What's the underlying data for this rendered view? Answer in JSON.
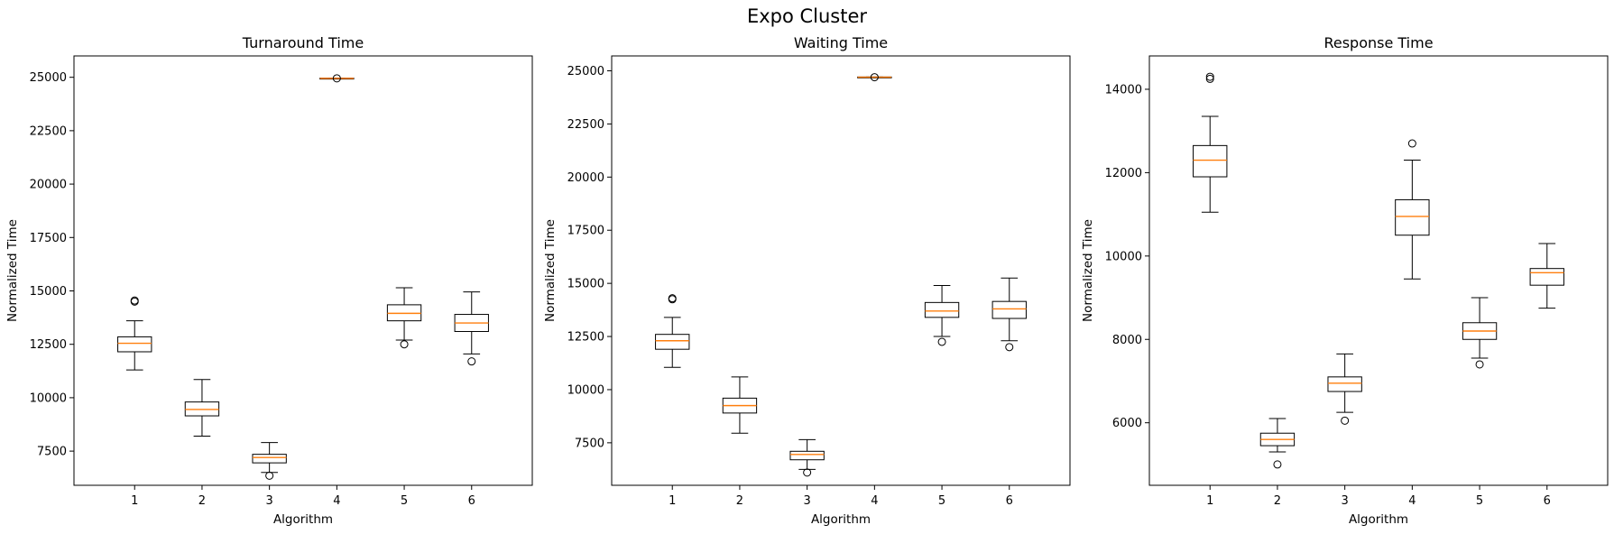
{
  "chart_data": {
    "suptitle": "Expo Cluster",
    "type": "box",
    "colors": {
      "box": "#000000",
      "median": "#ff7f0e",
      "frame": "#000000"
    },
    "grid": false,
    "panels": [
      {
        "title": "Turnaround Time",
        "xlabel": "Algorithm",
        "ylabel": "Normalized Time",
        "categories": [
          "1",
          "2",
          "3",
          "4",
          "5",
          "6"
        ],
        "ylim": [
          5900,
          26000
        ],
        "yticks": [
          7500,
          10000,
          12500,
          15000,
          17500,
          20000,
          22500,
          25000
        ],
        "boxes": [
          {
            "whislo": 11300,
            "q1": 12150,
            "med": 12550,
            "q3": 12850,
            "whishi": 13600,
            "fliers": [
              14500,
              14550
            ]
          },
          {
            "whislo": 8200,
            "q1": 9150,
            "med": 9450,
            "q3": 9800,
            "whishi": 10850,
            "fliers": []
          },
          {
            "whislo": 6500,
            "q1": 6950,
            "med": 7200,
            "q3": 7350,
            "whishi": 7900,
            "fliers": [
              6350
            ]
          },
          {
            "whislo": 24950,
            "q1": 24950,
            "med": 24950,
            "q3": 24960,
            "whishi": 24960,
            "fliers": [
              24950
            ]
          },
          {
            "whislo": 12700,
            "q1": 13600,
            "med": 13950,
            "q3": 14350,
            "whishi": 15150,
            "fliers": [
              12500
            ]
          },
          {
            "whislo": 12050,
            "q1": 13100,
            "med": 13500,
            "q3": 13900,
            "whishi": 14950,
            "fliers": [
              11700
            ]
          }
        ]
      },
      {
        "title": "Waiting Time",
        "xlabel": "Algorithm",
        "ylabel": "Normalized Time",
        "categories": [
          "1",
          "2",
          "3",
          "4",
          "5",
          "6"
        ],
        "ylim": [
          5500,
          25700
        ],
        "yticks": [
          7500,
          10000,
          12500,
          15000,
          17500,
          20000,
          22500,
          25000
        ],
        "boxes": [
          {
            "whislo": 11050,
            "q1": 11900,
            "med": 12300,
            "q3": 12600,
            "whishi": 13400,
            "fliers": [
              14250,
              14300
            ]
          },
          {
            "whislo": 7950,
            "q1": 8900,
            "med": 9250,
            "q3": 9600,
            "whishi": 10600,
            "fliers": []
          },
          {
            "whislo": 6250,
            "q1": 6700,
            "med": 6950,
            "q3": 7100,
            "whishi": 7650,
            "fliers": [
              6100
            ]
          },
          {
            "whislo": 24700,
            "q1": 24700,
            "med": 24700,
            "q3": 24710,
            "whishi": 24710,
            "fliers": [
              24700
            ]
          },
          {
            "whislo": 12500,
            "q1": 13400,
            "med": 13700,
            "q3": 14100,
            "whishi": 14900,
            "fliers": [
              12250
            ]
          },
          {
            "whislo": 12300,
            "q1": 13350,
            "med": 13800,
            "q3": 14150,
            "whishi": 15250,
            "fliers": [
              12000
            ]
          }
        ]
      },
      {
        "title": "Response Time",
        "xlabel": "Algorithm",
        "ylabel": "Normalized Time",
        "categories": [
          "1",
          "2",
          "3",
          "4",
          "5",
          "6"
        ],
        "ylim": [
          4500,
          14800
        ],
        "yticks": [
          6000,
          8000,
          10000,
          12000,
          14000
        ],
        "boxes": [
          {
            "whislo": 11050,
            "q1": 11900,
            "med": 12300,
            "q3": 12650,
            "whishi": 13350,
            "fliers": [
              14250,
              14300
            ]
          },
          {
            "whislo": 5300,
            "q1": 5450,
            "med": 5600,
            "q3": 5750,
            "whishi": 6100,
            "fliers": [
              5000
            ]
          },
          {
            "whislo": 6250,
            "q1": 6750,
            "med": 6950,
            "q3": 7100,
            "whishi": 7650,
            "fliers": [
              6050
            ]
          },
          {
            "whislo": 9450,
            "q1": 10500,
            "med": 10950,
            "q3": 11350,
            "whishi": 12300,
            "fliers": [
              12700
            ]
          },
          {
            "whislo": 7550,
            "q1": 8000,
            "med": 8200,
            "q3": 8400,
            "whishi": 9000,
            "fliers": [
              7400
            ]
          },
          {
            "whislo": 8750,
            "q1": 9300,
            "med": 9600,
            "q3": 9700,
            "whishi": 10300,
            "fliers": []
          }
        ]
      }
    ]
  }
}
